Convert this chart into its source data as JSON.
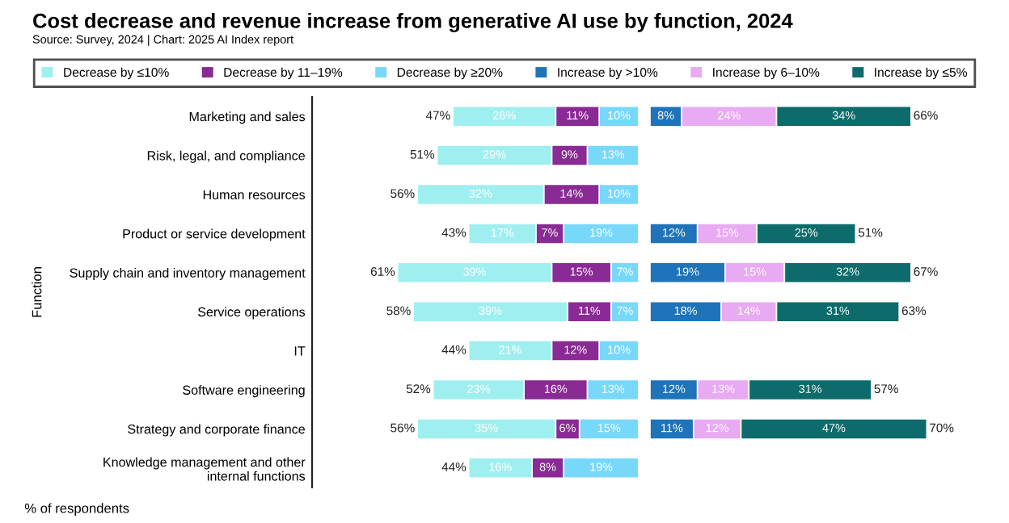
{
  "chart_data": [
    {
      "type": "bar",
      "orientation": "horizontal",
      "stacked": true,
      "title": "Cost decrease and revenue increase from generative AI use by function, 2024",
      "subtitle": "Source: Survey, 2024 | Chart: 2025 AI Index report",
      "ylabel": "Function",
      "xlabel": "% of respondents",
      "categories": [
        "Marketing and sales",
        "Risk, legal, and compliance",
        "Human resources",
        "Product or service development",
        "Supply chain and inventory management",
        "Service operations",
        "IT",
        "Software engineering",
        "Strategy and corporate finance",
        "Knowledge management and other\ninternal functions"
      ],
      "series": [
        {
          "name": "Decrease by ≥20%",
          "color": "#78d8fa",
          "values": [
            10,
            13,
            10,
            19,
            7,
            7,
            10,
            13,
            15,
            19
          ],
          "value_labels": [
            "10%",
            "13%",
            "10%",
            "19%",
            "7%",
            "7%",
            "10%",
            "13%",
            "15%",
            "19%"
          ]
        },
        {
          "name": "Decrease by 11–19%",
          "color": "#8a2a94",
          "values": [
            11,
            9,
            14,
            7,
            15,
            11,
            12,
            16,
            6,
            8
          ],
          "value_labels": [
            "11%",
            "9%",
            "14%",
            "7%",
            "15%",
            "11%",
            "12%",
            "16%",
            "6%",
            "8%"
          ]
        },
        {
          "name": "Decrease by ≤10%",
          "color": "#a0eff0",
          "values": [
            26,
            29,
            32,
            17,
            39,
            39,
            21,
            23,
            35,
            16
          ],
          "value_labels": [
            "26%",
            "29%",
            "32%",
            "17%",
            "39%",
            "39%",
            "21%",
            "23%",
            "35%",
            "16%"
          ]
        }
      ],
      "totals": [
        "47%",
        "51%",
        "56%",
        "43%",
        "61%",
        "58%",
        "44%",
        "52%",
        "56%",
        "44%"
      ],
      "tick_labels": "y",
      "legend": "top"
    },
    {
      "type": "bar",
      "orientation": "horizontal",
      "stacked": true,
      "categories": [
        null,
        null,
        null,
        null,
        null,
        null,
        null,
        null,
        null,
        null
      ],
      "series": [
        {
          "name": "Increase by >10%",
          "color": "#1f74b9",
          "values": [
            8,
            null,
            null,
            12,
            19,
            18,
            null,
            12,
            11,
            null
          ],
          "value_labels": [
            "8%",
            null,
            null,
            "12%",
            "19%",
            "18%",
            null,
            "12%",
            "11%",
            null
          ]
        },
        {
          "name": "Increase by 6–10%",
          "color": "#e8aaf2",
          "values": [
            24,
            null,
            null,
            15,
            15,
            14,
            null,
            13,
            12,
            null
          ],
          "value_labels": [
            "24%",
            null,
            null,
            "15%",
            "15%",
            "14%",
            null,
            "13%",
            "12%",
            null
          ]
        },
        {
          "name": "Increase by ≤5%",
          "color": "#0d6b6b",
          "values": [
            34,
            null,
            null,
            25,
            32,
            31,
            null,
            31,
            47,
            null
          ],
          "value_labels": [
            "34%",
            null,
            null,
            "25%",
            "32%",
            "31%",
            null,
            "31%",
            "47%",
            null
          ]
        }
      ],
      "totals": [
        "66%",
        null,
        null,
        "51%",
        "67%",
        "63%",
        null,
        "57%",
        "70%",
        null
      ],
      "tick_labels": false,
      "legend": "top"
    }
  ]
}
